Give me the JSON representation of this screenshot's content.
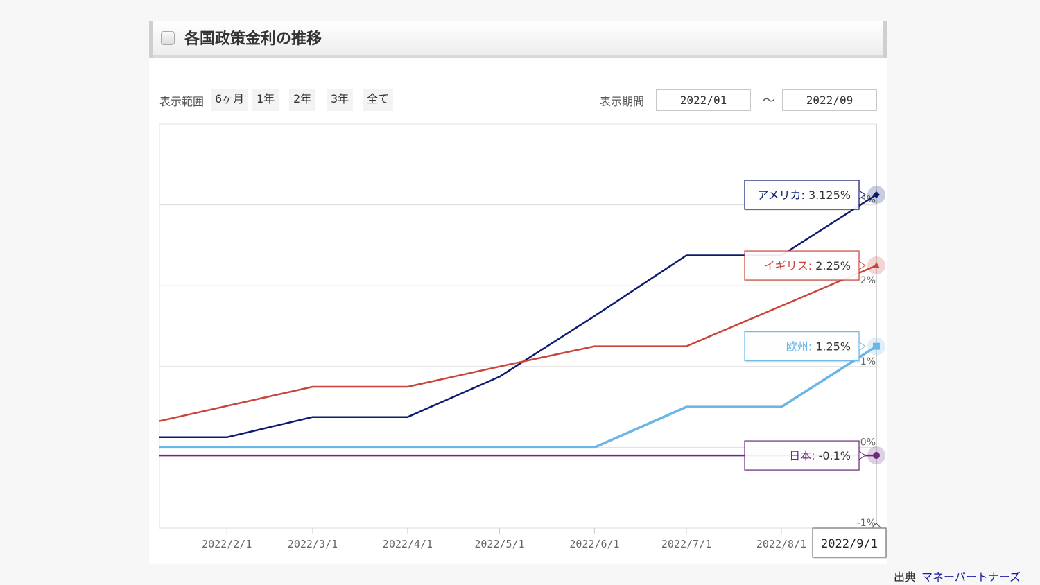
{
  "header": {
    "title": "各国政策金利の推移"
  },
  "controls": {
    "range_label": "表示範囲",
    "range_buttons": [
      "6ヶ月",
      "1年",
      "2年",
      "3年",
      "全て"
    ],
    "period_label": "表示期間",
    "from": "2022/01",
    "tilde": "～",
    "to": "2022/09"
  },
  "source": {
    "label": "出典",
    "link": "マネーパートナーズ"
  },
  "chart_data": {
    "type": "line",
    "x_labels": [
      "2022/2/1",
      "2022/3/1",
      "2022/4/1",
      "2022/5/1",
      "2022/6/1",
      "2022/7/1",
      "2022/8/1"
    ],
    "x_hover": "2022/9/1",
    "x_range": [
      "2022-01-10",
      "2022-09-01"
    ],
    "y_labels": [
      "3%",
      "2%",
      "1%",
      "0%",
      "-1%"
    ],
    "ylim": [
      -1,
      4
    ],
    "grid": true,
    "series": [
      {
        "name": "アメリカ",
        "color": "#0d1b6e",
        "points": [
          [
            "2022-01-10",
            0.125
          ],
          [
            "2022-02-01",
            0.125
          ],
          [
            "2022-03-01",
            0.375
          ],
          [
            "2022-04-01",
            0.375
          ],
          [
            "2022-05-01",
            0.875
          ],
          [
            "2022-06-01",
            1.625
          ],
          [
            "2022-07-01",
            2.375
          ],
          [
            "2022-08-01",
            2.375
          ],
          [
            "2022-09-01",
            3.125
          ]
        ],
        "tooltip": "アメリカ: 3.125%",
        "marker": "diamond"
      },
      {
        "name": "イギリス",
        "color": "#c9453a",
        "points": [
          [
            "2022-01-10",
            0.325
          ],
          [
            "2022-03-01",
            0.75
          ],
          [
            "2022-04-01",
            0.75
          ],
          [
            "2022-05-01",
            1.0
          ],
          [
            "2022-06-01",
            1.25
          ],
          [
            "2022-07-01",
            1.25
          ],
          [
            "2022-09-01",
            2.25
          ]
        ],
        "tooltip": "イギリス: 2.25%",
        "marker": "triangle"
      },
      {
        "name": "欧州",
        "color": "#6cb6e6",
        "points": [
          [
            "2022-01-10",
            0.0
          ],
          [
            "2022-06-01",
            0.0
          ],
          [
            "2022-07-01",
            0.5
          ],
          [
            "2022-08-01",
            0.5
          ],
          [
            "2022-09-01",
            1.25
          ]
        ],
        "tooltip": "欧州: 1.25%",
        "marker": "square"
      },
      {
        "name": "日本",
        "color": "#6b2a7e",
        "points": [
          [
            "2022-01-10",
            -0.1
          ],
          [
            "2022-09-01",
            -0.1
          ]
        ],
        "tooltip": "日本: -0.1%",
        "marker": "circle"
      }
    ]
  }
}
